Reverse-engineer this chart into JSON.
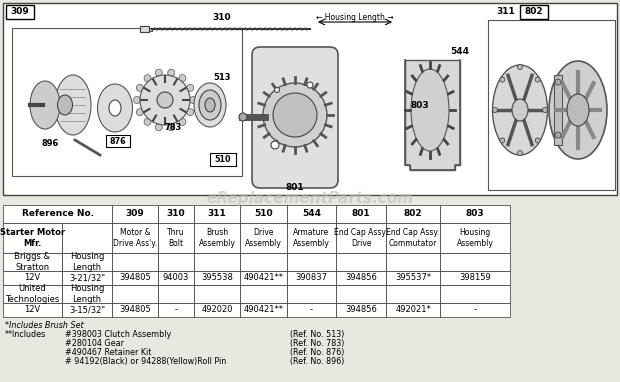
{
  "bg_color": "#e8e8e0",
  "watermark": "eReplacementParts.com",
  "footnote1": "*Includes Brush Set",
  "footnote2_lines": [
    [
      "**Includes",
      "#398003 Clutch Assembly",
      "(Ref. No. 513)"
    ],
    [
      "",
      "#280104 Gear",
      "(Ref. No. 783)"
    ],
    [
      "",
      "#490467 Retainer Kit",
      "(Ref. No. 876)"
    ],
    [
      "",
      "# 94192(Black) or 94288(Yellow)Roll Pin",
      "(Ref. No. 896)"
    ]
  ],
  "ref_nums": [
    "309",
    "310",
    "311",
    "510",
    "544",
    "801",
    "802",
    "803"
  ],
  "col_descs": [
    "Motor &\nDrive Ass'y.",
    "Thru\nBolt",
    "Brush\nAssembly",
    "Drive\nAssembly",
    "Armature\nAssembly",
    "End Cap Assy.\nDrive",
    "End Cap Assy.\nCommutator",
    "Housing\nAssembly"
  ],
  "data_rows": [
    [
      "Briggs &\nStratton",
      "Housing\nLength",
      "",
      "",
      "",
      "",
      "",
      "",
      "",
      ""
    ],
    [
      "12V",
      "3-21/32*",
      "394805",
      "94003",
      "395538",
      "490421**",
      "390837",
      "394856",
      "395537*",
      "398159"
    ],
    [
      "United\nTechnologies",
      "Housing\nLength",
      "",
      "",
      "",
      "",
      "",
      "",
      "",
      ""
    ],
    [
      "12V",
      "3-15/32*",
      "394805",
      "-",
      "492020",
      "490421**",
      "-",
      "394856",
      "492021*",
      "-"
    ]
  ]
}
